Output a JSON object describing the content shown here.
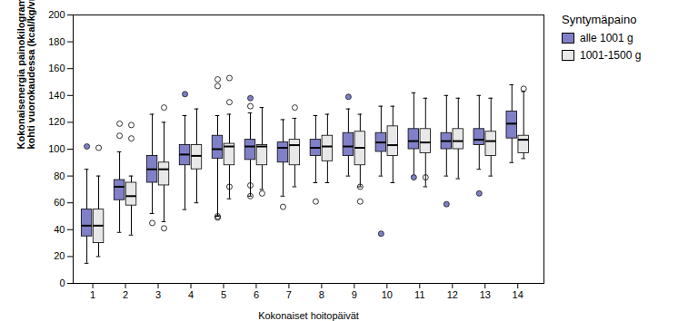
{
  "chart_data": {
    "type": "box",
    "xlabel": "Kokonaiset hoitopäivät",
    "ylabel": "Kokonaisenergia painokilogrammaa\nkohti vuorokaudessa (kcal/kg/vrk)",
    "xlim": [
      0.4,
      14.8
    ],
    "ylim": [
      0,
      200
    ],
    "xticks": [
      1,
      2,
      3,
      4,
      5,
      6,
      7,
      8,
      9,
      10,
      11,
      12,
      13,
      14
    ],
    "yticks": [
      0,
      20,
      40,
      60,
      80,
      100,
      120,
      140,
      160,
      180,
      200
    ],
    "grid": false,
    "legend": "right",
    "legend_title": "Syntymäpaino",
    "x": [
      1,
      2,
      3,
      4,
      5,
      6,
      7,
      8,
      9,
      10,
      11,
      12,
      13,
      14
    ],
    "series": [
      {
        "name": "alle 1001 g",
        "color": "#8080c8",
        "medians": [
          43,
          72,
          85,
          96,
          100,
          102,
          101,
          101,
          102,
          105,
          106,
          106,
          107,
          119
        ],
        "q1": [
          35,
          62,
          75,
          88,
          93,
          92,
          90,
          95,
          95,
          98,
          100,
          100,
          103,
          108
        ],
        "q3": [
          55,
          77,
          95,
          103,
          110,
          107,
          105,
          107,
          112,
          112,
          115,
          112,
          115,
          128
        ],
        "whislo": [
          15,
          38,
          52,
          55,
          50,
          65,
          65,
          75,
          80,
          80,
          80,
          80,
          85,
          90
        ],
        "whishi": [
          85,
          98,
          126,
          125,
          125,
          127,
          122,
          125,
          130,
          132,
          142,
          140,
          140,
          148
        ],
        "outliers_filled": [
          [
            1,
            102
          ],
          [
            4,
            141
          ],
          [
            6,
            138
          ],
          [
            9,
            139
          ],
          [
            11,
            79
          ],
          [
            12,
            59
          ],
          [
            13,
            67
          ],
          [
            10,
            37
          ]
        ],
        "outliers_open": [
          [
            2,
            119
          ],
          [
            2,
            110
          ],
          [
            3,
            45
          ],
          [
            5,
            152
          ],
          [
            5,
            147
          ],
          [
            5,
            50
          ],
          [
            5,
            49
          ],
          [
            6,
            132
          ],
          [
            6,
            73
          ],
          [
            6,
            65
          ],
          [
            7,
            57
          ],
          [
            8,
            61
          ]
        ]
      },
      {
        "name": "1001-1500 g",
        "color": "#e8e8e8",
        "medians": [
          43,
          65,
          85,
          95,
          102,
          102,
          103,
          102,
          101,
          103,
          105,
          106,
          106,
          107
        ],
        "q1": [
          30,
          58,
          73,
          85,
          88,
          88,
          88,
          91,
          88,
          95,
          97,
          100,
          95,
          97
        ],
        "q3": [
          55,
          75,
          90,
          103,
          104,
          103,
          107,
          110,
          113,
          117,
          115,
          115,
          113,
          110
        ],
        "whislo": [
          20,
          36,
          46,
          60,
          63,
          70,
          72,
          75,
          72,
          75,
          72,
          78,
          80,
          93
        ],
        "whishi": [
          80,
          80,
          120,
          130,
          126,
          131,
          123,
          126,
          126,
          132,
          138,
          138,
          138,
          143
        ],
        "outliers_filled": [],
        "outliers_open": [
          [
            1,
            101
          ],
          [
            2,
            118
          ],
          [
            2,
            108
          ],
          [
            3,
            131
          ],
          [
            3,
            41
          ],
          [
            5,
            153
          ],
          [
            5,
            135
          ],
          [
            5,
            72
          ],
          [
            6,
            67
          ],
          [
            7,
            131
          ],
          [
            9,
            72
          ],
          [
            9,
            61
          ],
          [
            11,
            79
          ],
          [
            14,
            145
          ]
        ]
      }
    ]
  }
}
